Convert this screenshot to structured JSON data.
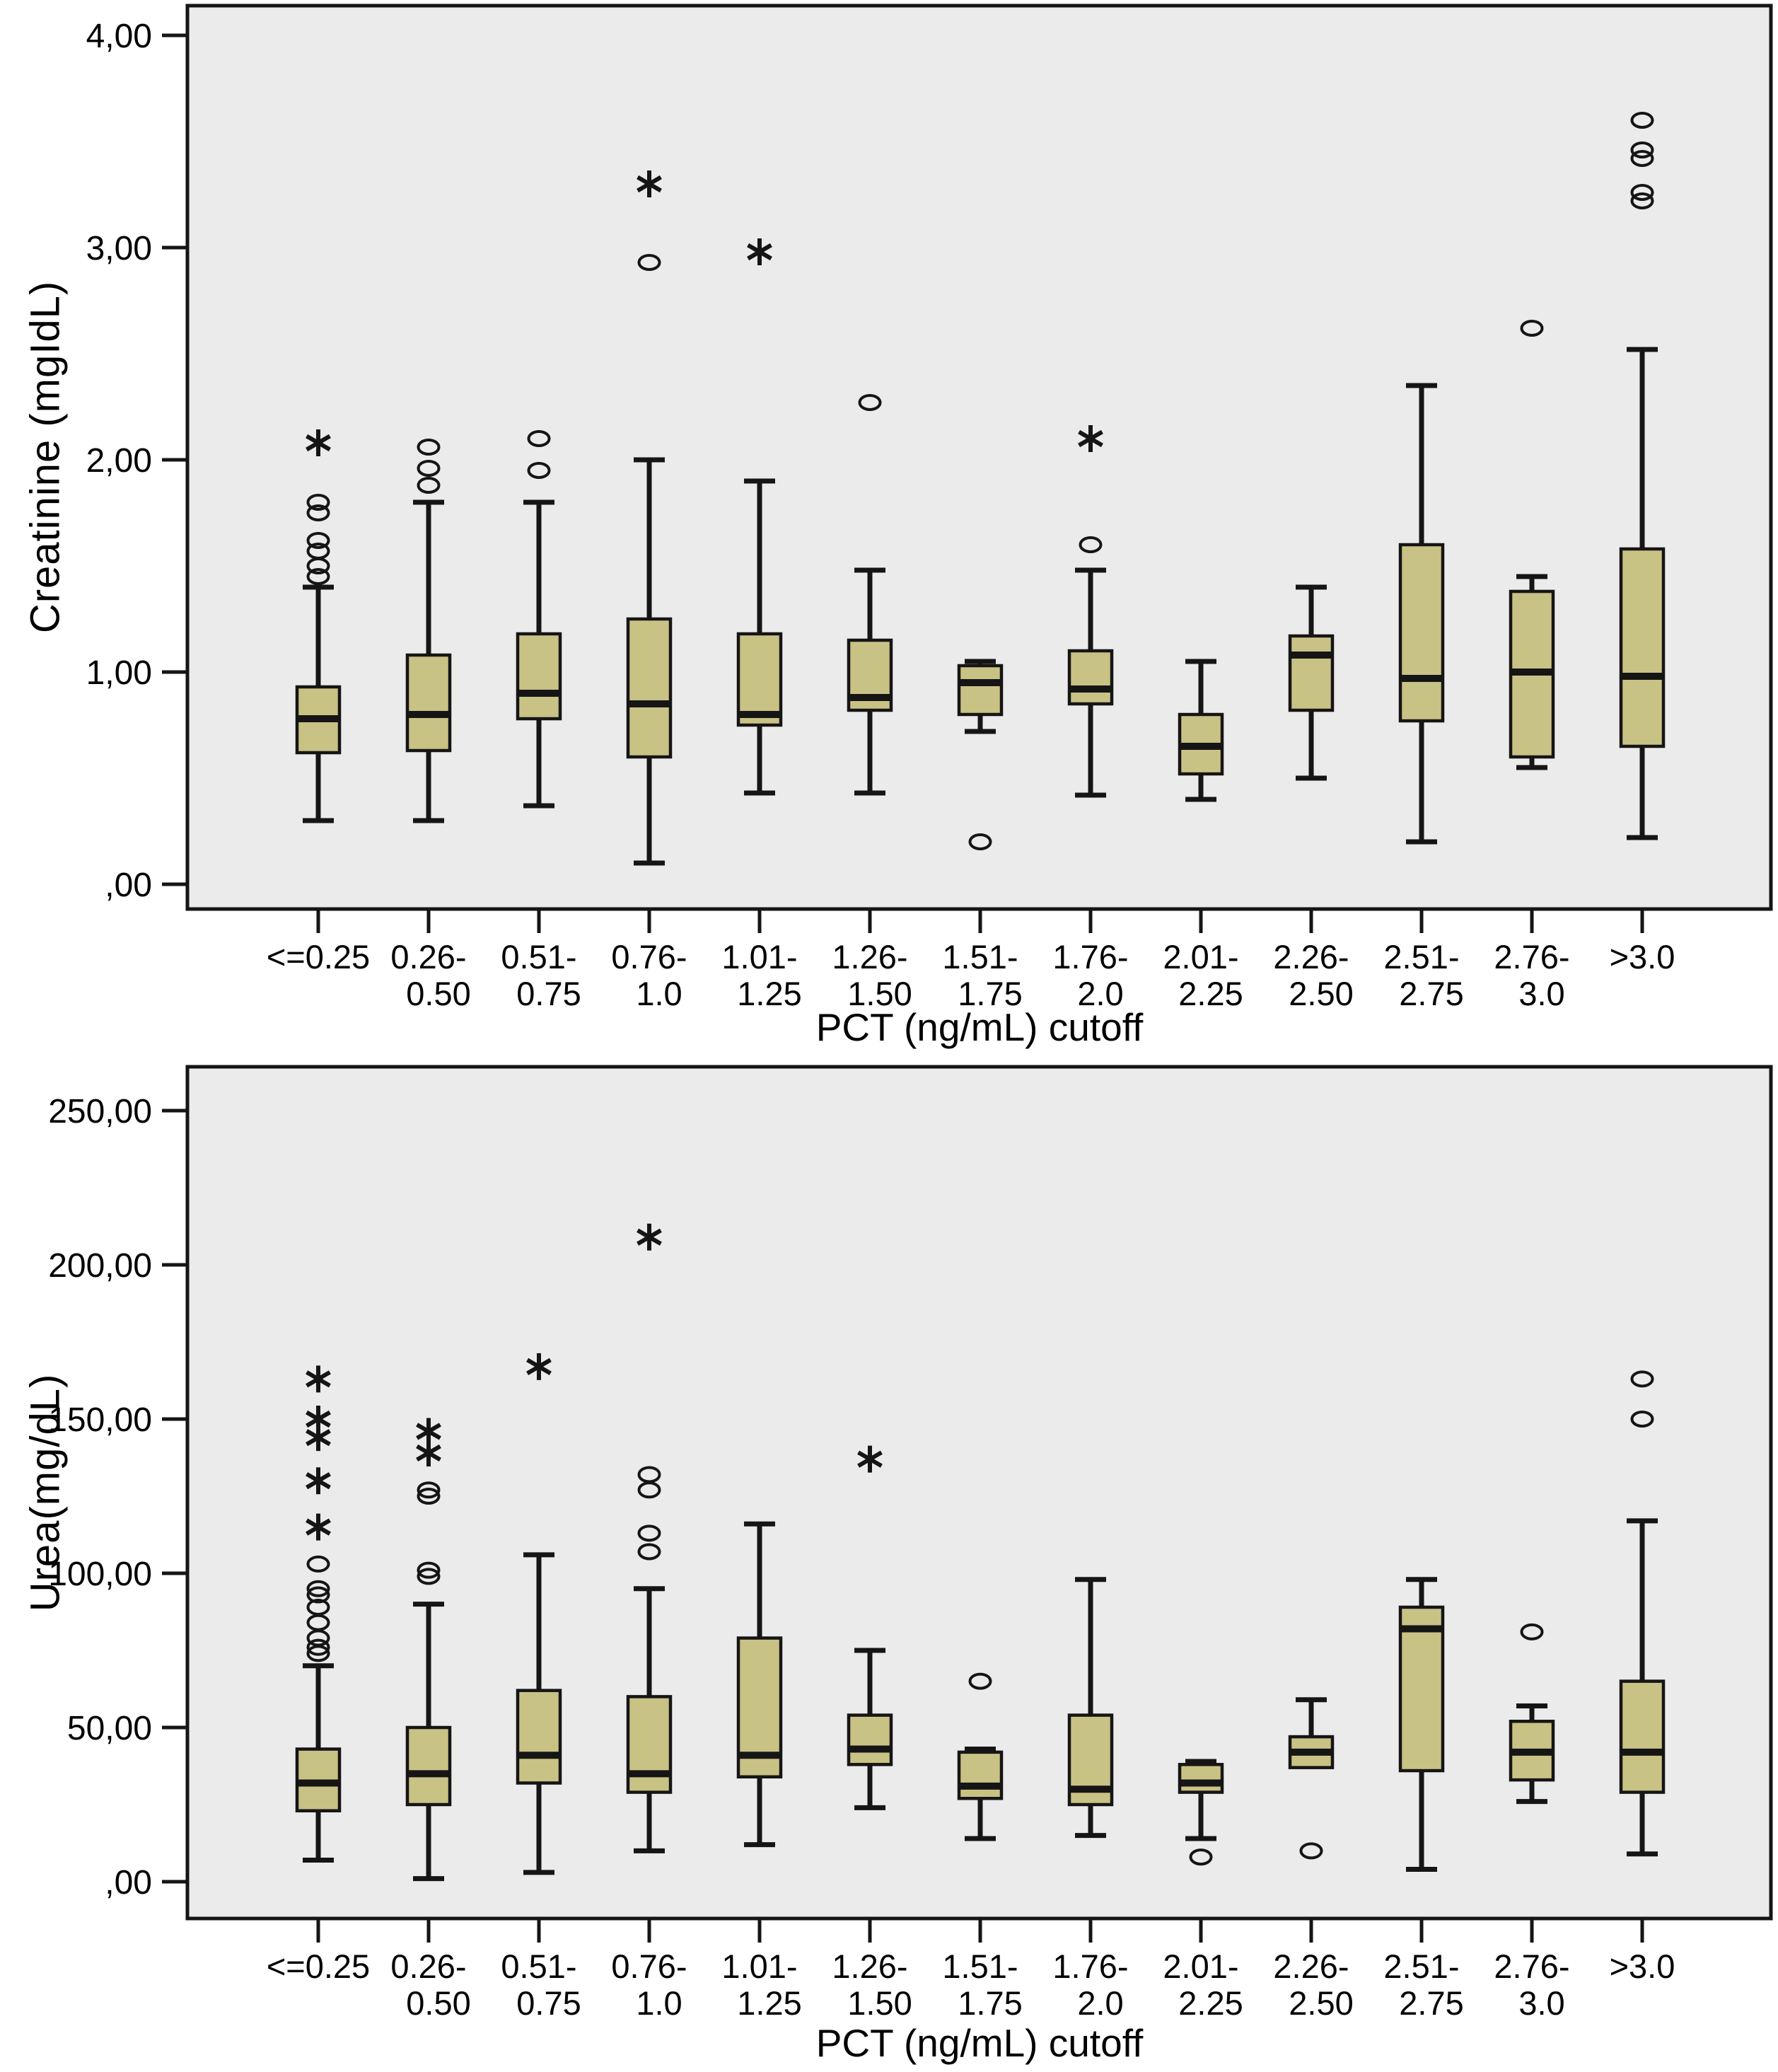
{
  "chart_data": [
    {
      "type": "box",
      "title": "",
      "ylabel": "Creatinine (mgIdL)",
      "xlabel": "PCT (ng/mL) cutoff",
      "ylim": [
        -0.12,
        4.25
      ],
      "grid": false,
      "legend": "none",
      "yticks": [
        {
          "label": "4,00",
          "value": 4.0
        },
        {
          "label": "3,00",
          "value": 3.0
        },
        {
          "label": "2,00",
          "value": 2.0
        },
        {
          "label": "1,00",
          "value": 1.0
        },
        {
          "label": ",00",
          "value": 0.0
        }
      ],
      "categories": [
        "<=0.25",
        "0.26-0.50",
        "0.51-0.75",
        "0.76-1.0",
        "1.01-1.25",
        "1.26-1.50",
        "1.51-1.75",
        "1.76-2.0",
        "2.01-2.25",
        "2.26-2.50",
        "2.51-2.75",
        "2.76-3.0",
        ">3.0"
      ],
      "category_label_lines": [
        [
          "<=0.25"
        ],
        [
          "0.26-",
          "0.50"
        ],
        [
          "0.51-",
          "0.75"
        ],
        [
          "0.76-",
          "1.0"
        ],
        [
          "1.01-",
          "1.25"
        ],
        [
          "1.26-",
          "1.50"
        ],
        [
          "1.51-",
          "1.75"
        ],
        [
          "1.76-",
          "2.0"
        ],
        [
          "2.01-",
          "2.25"
        ],
        [
          "2.26-",
          "2.50"
        ],
        [
          "2.51-",
          "2.75"
        ],
        [
          "2.76-",
          "3.0"
        ],
        [
          ">3.0"
        ]
      ],
      "boxes": [
        {
          "category": "<=0.25",
          "whisker_low": 0.3,
          "q1": 0.62,
          "median": 0.78,
          "q3": 0.93,
          "whisker_high": 1.4,
          "outliers": [
            1.45,
            1.5,
            1.57,
            1.62,
            1.75,
            1.8
          ],
          "extremes": [
            2.08
          ]
        },
        {
          "category": "0.26-0.50",
          "whisker_low": 0.3,
          "q1": 0.63,
          "median": 0.8,
          "q3": 1.08,
          "whisker_high": 1.8,
          "outliers": [
            1.88,
            1.96,
            2.06
          ],
          "extremes": []
        },
        {
          "category": "0.51-0.75",
          "whisker_low": 0.37,
          "q1": 0.78,
          "median": 0.9,
          "q3": 1.18,
          "whisker_high": 1.8,
          "outliers": [
            1.95,
            2.1
          ],
          "extremes": []
        },
        {
          "category": "0.76-1.0",
          "whisker_low": 0.1,
          "q1": 0.6,
          "median": 0.85,
          "q3": 1.25,
          "whisker_high": 2.0,
          "outliers": [
            2.93
          ],
          "extremes": [
            3.3
          ]
        },
        {
          "category": "1.01-1.25",
          "whisker_low": 0.43,
          "q1": 0.75,
          "median": 0.8,
          "q3": 1.18,
          "whisker_high": 1.9,
          "outliers": [],
          "extremes": [
            2.98
          ]
        },
        {
          "category": "1.26-1.50",
          "whisker_low": 0.43,
          "q1": 0.82,
          "median": 0.88,
          "q3": 1.15,
          "whisker_high": 1.48,
          "outliers": [
            2.27
          ],
          "extremes": []
        },
        {
          "category": "1.51-1.75",
          "whisker_low": 0.72,
          "q1": 0.8,
          "median": 0.95,
          "q3": 1.03,
          "whisker_high": 1.05,
          "outliers": [
            0.2
          ],
          "extremes": []
        },
        {
          "category": "1.76-2.0",
          "whisker_low": 0.42,
          "q1": 0.85,
          "median": 0.92,
          "q3": 1.1,
          "whisker_high": 1.48,
          "outliers": [
            1.6
          ],
          "extremes": [
            2.1
          ]
        },
        {
          "category": "2.01-2.25",
          "whisker_low": 0.4,
          "q1": 0.52,
          "median": 0.65,
          "q3": 0.8,
          "whisker_high": 1.05,
          "outliers": [],
          "extremes": []
        },
        {
          "category": "2.26-2.50",
          "whisker_low": 0.5,
          "q1": 0.82,
          "median": 1.08,
          "q3": 1.17,
          "whisker_high": 1.4,
          "outliers": [],
          "extremes": []
        },
        {
          "category": "2.51-2.75",
          "whisker_low": 0.2,
          "q1": 0.77,
          "median": 0.97,
          "q3": 1.6,
          "whisker_high": 2.35,
          "outliers": [],
          "extremes": []
        },
        {
          "category": "2.76-3.0",
          "whisker_low": 0.55,
          "q1": 0.6,
          "median": 1.0,
          "q3": 1.38,
          "whisker_high": 1.45,
          "outliers": [
            2.62
          ],
          "extremes": []
        },
        {
          "category": ">3.0",
          "whisker_low": 0.22,
          "q1": 0.65,
          "median": 0.98,
          "q3": 1.58,
          "whisker_high": 2.52,
          "outliers": [
            3.22,
            3.26,
            3.42,
            3.46,
            3.6
          ],
          "extremes": []
        }
      ]
    },
    {
      "type": "box",
      "title": "",
      "ylabel": "Urea(mg/dL)",
      "xlabel": "PCT (ng/mL) cutoff",
      "ylim": [
        -12,
        262
      ],
      "grid": false,
      "legend": "none",
      "yticks": [
        {
          "label": "250,00",
          "value": 250
        },
        {
          "label": "200,00",
          "value": 200
        },
        {
          "label": "150,00",
          "value": 150
        },
        {
          "label": "100,00",
          "value": 100
        },
        {
          "label": "50,00",
          "value": 50
        },
        {
          "label": ",00",
          "value": 0
        }
      ],
      "categories": [
        "<=0.25",
        "0.26-0.50",
        "0.51-0.75",
        "0.76-1.0",
        "1.01-1.25",
        "1.26-1.50",
        "1.51-1.75",
        "1.76-2.0",
        "2.01-2.25",
        "2.26-2.50",
        "2.51-2.75",
        "2.76-3.0",
        ">3.0"
      ],
      "category_label_lines": [
        [
          "<=0.25"
        ],
        [
          "0.26-",
          "0.50"
        ],
        [
          "0.51-",
          "0.75"
        ],
        [
          "0.76-",
          "1.0"
        ],
        [
          "1.01-",
          "1.25"
        ],
        [
          "1.26-",
          "1.50"
        ],
        [
          "1.51-",
          "1.75"
        ],
        [
          "1.76-",
          "2.0"
        ],
        [
          "2.01-",
          "2.25"
        ],
        [
          "2.26-",
          "2.50"
        ],
        [
          "2.51-",
          "2.75"
        ],
        [
          "2.76-",
          "3.0"
        ],
        [
          ">3.0"
        ]
      ],
      "boxes": [
        {
          "category": "<=0.25",
          "whisker_low": 7,
          "q1": 23,
          "median": 32,
          "q3": 43,
          "whisker_high": 70,
          "outliers": [
            74,
            76,
            79,
            84,
            89,
            93,
            95,
            103
          ],
          "extremes": [
            115,
            130,
            144,
            150,
            163
          ]
        },
        {
          "category": "0.26-0.50",
          "whisker_low": 1,
          "q1": 25,
          "median": 35,
          "q3": 50,
          "whisker_high": 90,
          "outliers": [
            99,
            101,
            125,
            127
          ],
          "extremes": [
            139,
            146
          ]
        },
        {
          "category": "0.51-0.75",
          "whisker_low": 3,
          "q1": 32,
          "median": 41,
          "q3": 62,
          "whisker_high": 106,
          "outliers": [],
          "extremes": [
            167
          ]
        },
        {
          "category": "0.76-1.0",
          "whisker_low": 10,
          "q1": 29,
          "median": 35,
          "q3": 60,
          "whisker_high": 95,
          "outliers": [
            107,
            113,
            127,
            132
          ],
          "extremes": [
            209
          ]
        },
        {
          "category": "1.01-1.25",
          "whisker_low": 12,
          "q1": 34,
          "median": 41,
          "q3": 79,
          "whisker_high": 116,
          "outliers": [],
          "extremes": []
        },
        {
          "category": "1.26-1.50",
          "whisker_low": 24,
          "q1": 38,
          "median": 43,
          "q3": 54,
          "whisker_high": 75,
          "outliers": [],
          "extremes": [
            137
          ]
        },
        {
          "category": "1.51-1.75",
          "whisker_low": 14,
          "q1": 27,
          "median": 31,
          "q3": 42,
          "whisker_high": 43,
          "outliers": [
            65
          ],
          "extremes": []
        },
        {
          "category": "1.76-2.0",
          "whisker_low": 15,
          "q1": 25,
          "median": 30,
          "q3": 54,
          "whisker_high": 98,
          "outliers": [],
          "extremes": []
        },
        {
          "category": "2.01-2.25",
          "whisker_low": 14,
          "q1": 29,
          "median": 32,
          "q3": 38,
          "whisker_high": 39,
          "outliers": [
            8
          ],
          "extremes": []
        },
        {
          "category": "2.26-2.50",
          "whisker_low": 37,
          "q1": 37,
          "median": 42,
          "q3": 47,
          "whisker_high": 59,
          "outliers": [
            10
          ],
          "extremes": []
        },
        {
          "category": "2.51-2.75",
          "whisker_low": 4,
          "q1": 36,
          "median": 82,
          "q3": 89,
          "whisker_high": 98,
          "outliers": [],
          "extremes": []
        },
        {
          "category": "2.76-3.0",
          "whisker_low": 26,
          "q1": 33,
          "median": 42,
          "q3": 52,
          "whisker_high": 57,
          "outliers": [
            81
          ],
          "extremes": []
        },
        {
          "category": ">3.0",
          "whisker_low": 9,
          "q1": 29,
          "median": 42,
          "q3": 65,
          "whisker_high": 117,
          "outliers": [
            150,
            163
          ],
          "extremes": []
        }
      ]
    }
  ],
  "colors": {
    "box_fill": "#c9c285",
    "plot_background": "#ebebeb",
    "line": "#151515",
    "page_background": "#ffffff"
  },
  "markers": {
    "outlier": "open-circle",
    "extreme": "asterisk-star"
  }
}
